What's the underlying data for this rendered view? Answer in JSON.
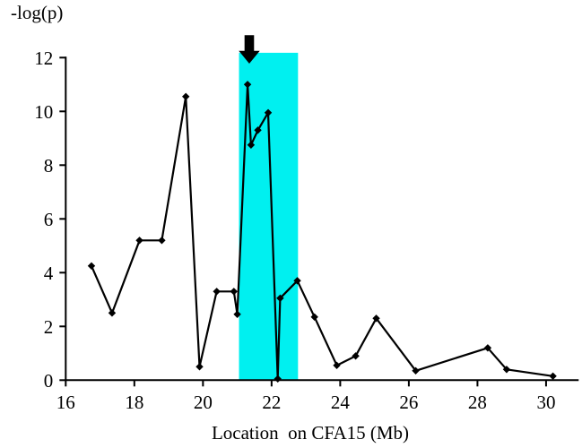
{
  "chart_data": {
    "type": "line",
    "title": "-log(p)",
    "xlabel": "Location  on CFA15 (Mb)",
    "ylabel": "-log(p)",
    "x_ticks": [
      16,
      18,
      20,
      22,
      24,
      26,
      28,
      30
    ],
    "y_ticks": [
      0,
      2,
      4,
      6,
      8,
      10,
      12
    ],
    "xlim": [
      16,
      30.95
    ],
    "ylim": [
      0,
      12.2
    ],
    "grid": false,
    "legend": "none",
    "marker": "diamond",
    "line_color": "#000000",
    "axis_color": "#000000",
    "series": [
      {
        "name": "-log(p) vs location on CFA15",
        "points": [
          [
            16.75,
            4.25
          ],
          [
            17.35,
            2.5
          ],
          [
            18.15,
            5.2
          ],
          [
            18.8,
            5.2
          ],
          [
            19.5,
            10.55
          ],
          [
            19.9,
            0.5
          ],
          [
            20.4,
            3.3
          ],
          [
            20.9,
            3.3
          ],
          [
            21.0,
            2.45
          ],
          [
            21.3,
            11.0
          ],
          [
            21.4,
            8.75
          ],
          [
            21.6,
            9.3
          ],
          [
            21.9,
            9.95
          ],
          [
            22.18,
            0.05
          ],
          [
            22.25,
            3.05
          ],
          [
            22.75,
            3.7
          ],
          [
            23.25,
            2.35
          ],
          [
            23.9,
            0.55
          ],
          [
            24.45,
            0.9
          ],
          [
            25.05,
            2.3
          ],
          [
            26.2,
            0.35
          ],
          [
            28.3,
            1.2
          ],
          [
            28.85,
            0.4
          ],
          [
            30.2,
            0.15
          ]
        ]
      }
    ],
    "highlight_band": {
      "x_start": 21.05,
      "x_end": 22.77,
      "y_bottom": 0,
      "y_top": 12.18,
      "color": "#00F0F0"
    },
    "annotation_arrow": {
      "shape": "block-arrow-down",
      "x": 21.35,
      "color": "#000000"
    }
  }
}
